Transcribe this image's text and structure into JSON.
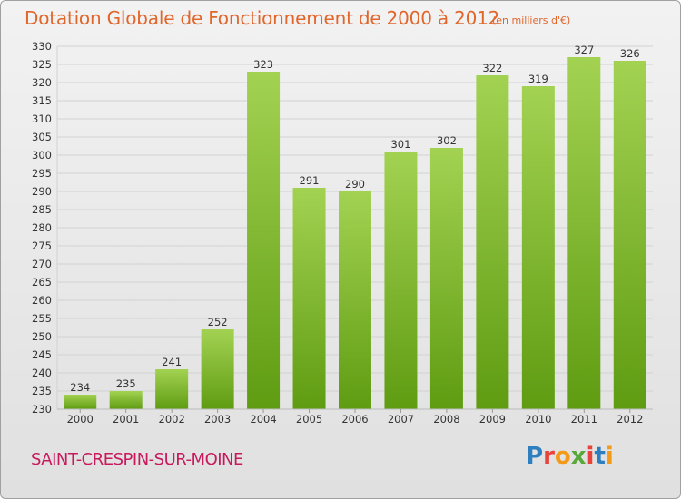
{
  "header": {
    "title": "Dotation Globale de Fonctionnement de 2000 à 2012",
    "unit": "(en milliers d'€)"
  },
  "footer": {
    "commune": "SAINT-CRESPIN-SUR-MOINE",
    "logo": {
      "text": "Proxiti",
      "colors": [
        "#2e7fc0",
        "#e8433a",
        "#f39a1a",
        "#58a83a",
        "#e8433a",
        "#2e7fc0",
        "#f39a1a"
      ]
    }
  },
  "colors": {
    "bar_top": "#a3d252",
    "bar_bottom": "#5f9c12",
    "title": "#e0662b",
    "commune": "#c8195d"
  },
  "chart_data": {
    "type": "bar",
    "categories": [
      "2000",
      "2001",
      "2002",
      "2003",
      "2004",
      "2005",
      "2006",
      "2007",
      "2008",
      "2009",
      "2010",
      "2011",
      "2012"
    ],
    "values": [
      234,
      235,
      241,
      252,
      323,
      291,
      290,
      301,
      302,
      322,
      319,
      327,
      326
    ],
    "ylim": [
      230,
      330
    ],
    "yticks": [
      230,
      235,
      240,
      245,
      250,
      255,
      260,
      265,
      270,
      275,
      280,
      285,
      290,
      295,
      300,
      305,
      310,
      315,
      320,
      325,
      330
    ],
    "grid": true,
    "data_labels": true
  }
}
